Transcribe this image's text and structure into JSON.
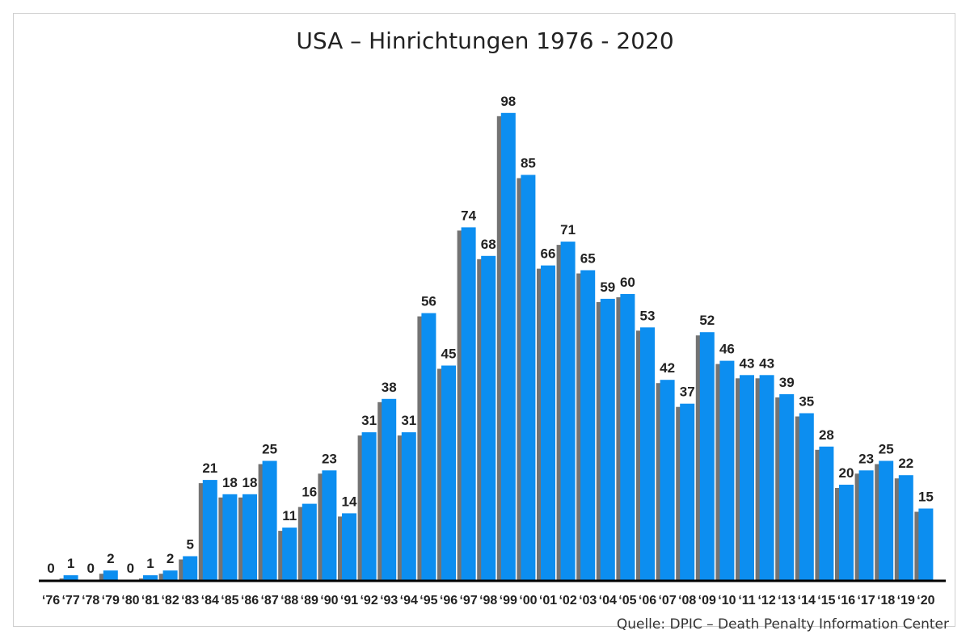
{
  "chart_data": {
    "type": "bar",
    "title": "USA – Hinrichtungen 1976 - 2020",
    "source": "Quelle: DPIC – Death Penalty Information Center",
    "categories": [
      "‘76",
      "‘77",
      "‘78",
      "‘79",
      "‘80",
      "‘81",
      "‘82",
      "‘83",
      "‘84",
      "‘85",
      "‘86",
      "‘87",
      "‘88",
      "‘89",
      "‘90",
      "‘91",
      "‘92",
      "‘93",
      "‘94",
      "‘95",
      "‘96",
      "‘97",
      "‘98",
      "‘99",
      "‘00",
      "‘01",
      "‘02",
      "‘03",
      "‘04",
      "‘05",
      "‘06",
      "‘07",
      "‘08",
      "‘09",
      "‘10",
      "‘11",
      "‘12",
      "‘13",
      "‘14",
      "‘15",
      "‘16",
      "‘17",
      "‘18",
      "‘19",
      "‘20"
    ],
    "values": [
      0,
      1,
      0,
      2,
      0,
      1,
      2,
      5,
      21,
      18,
      18,
      25,
      11,
      16,
      23,
      14,
      31,
      38,
      31,
      56,
      45,
      74,
      68,
      98,
      85,
      66,
      71,
      65,
      59,
      60,
      53,
      42,
      37,
      52,
      46,
      43,
      43,
      39,
      35,
      28,
      20,
      23,
      25,
      22,
      15
    ],
    "xlabel": "",
    "ylabel": "",
    "ylim": [
      0,
      100
    ],
    "grid": false,
    "legend": "none",
    "colors": {
      "bar": "#0c8ef0",
      "shadow": "#000000",
      "axis": "#000000",
      "text": "#222222"
    }
  }
}
